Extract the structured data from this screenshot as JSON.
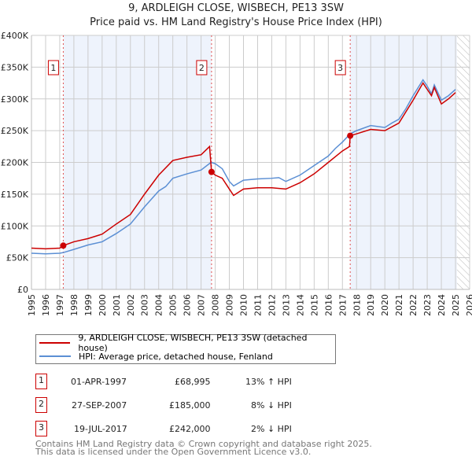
{
  "title": "9, ARDLEIGH CLOSE, WISBECH, PE13 3SW",
  "subtitle": "Price paid vs. HM Land Registry's House Price Index (HPI)",
  "chart_data": {
    "type": "line",
    "xlim": [
      1995,
      2026
    ],
    "ylim": [
      0,
      400000
    ],
    "yticks": [
      {
        "v": 0,
        "label": "£0"
      },
      {
        "v": 50000,
        "label": "£50K"
      },
      {
        "v": 100000,
        "label": "£100K"
      },
      {
        "v": 150000,
        "label": "£150K"
      },
      {
        "v": 200000,
        "label": "£200K"
      },
      {
        "v": 250000,
        "label": "£250K"
      },
      {
        "v": 300000,
        "label": "£300K"
      },
      {
        "v": 350000,
        "label": "£350K"
      },
      {
        "v": 400000,
        "label": "£400K"
      }
    ],
    "xticks": [
      "1995",
      "1996",
      "1997",
      "1998",
      "1999",
      "2000",
      "2001",
      "2002",
      "2003",
      "2004",
      "2005",
      "2006",
      "2007",
      "2008",
      "2009",
      "2010",
      "2011",
      "2012",
      "2013",
      "2014",
      "2015",
      "2016",
      "2017",
      "2018",
      "2019",
      "2020",
      "2021",
      "2022",
      "2023",
      "2024",
      "2025",
      "2026"
    ],
    "shaded_ranges": [
      [
        1997.25,
        2007.74
      ],
      [
        2017.55,
        2025.1
      ]
    ],
    "forecast_hatch_from": 2025.1,
    "series": [
      {
        "name": "9, ARDLEIGH CLOSE, WISBECH, PE13 3SW (detached house)",
        "color": "#cc0000",
        "x": [
          1995,
          1996,
          1997,
          1997.25,
          1998,
          1999,
          2000,
          2001,
          2002,
          2003,
          2004,
          2005,
          2006,
          2007,
          2007.6,
          2007.74,
          2008,
          2008.5,
          2009,
          2009.3,
          2010,
          2011,
          2012,
          2013,
          2014,
          2015,
          2016,
          2017,
          2017.5,
          2017.55,
          2018,
          2019,
          2020,
          2021,
          2022,
          2022.7,
          2023,
          2023.3,
          2023.5,
          2024,
          2024.5,
          2025
        ],
        "y": [
          65000,
          64000,
          65000,
          68995,
          75000,
          80000,
          87000,
          103000,
          118000,
          150000,
          180000,
          203000,
          208000,
          212000,
          225000,
          185000,
          180000,
          175000,
          158000,
          148000,
          158000,
          160000,
          160000,
          158000,
          168000,
          182000,
          200000,
          218000,
          225000,
          242000,
          245000,
          252000,
          250000,
          262000,
          298000,
          325000,
          315000,
          305000,
          318000,
          292000,
          300000,
          310000
        ]
      },
      {
        "name": "HPI: Average price, detached house, Fenland",
        "color": "#5b8fd4",
        "x": [
          1995,
          1996,
          1997,
          1997.25,
          1998,
          1999,
          2000,
          2001,
          2002,
          2003,
          2004,
          2004.5,
          2005,
          2006,
          2007,
          2007.7,
          2008,
          2008.5,
          2009,
          2009.3,
          2010,
          2011,
          2012,
          2012.5,
          2013,
          2014,
          2015,
          2016,
          2016.5,
          2017,
          2017.55,
          2018,
          2019,
          2020,
          2020.5,
          2021,
          2021.5,
          2022,
          2022.7,
          2023,
          2023.3,
          2023.5,
          2024,
          2024.5,
          2025
        ],
        "y": [
          57000,
          56000,
          57000,
          58000,
          63000,
          70000,
          75000,
          88000,
          103000,
          130000,
          155000,
          162000,
          175000,
          182000,
          188000,
          200000,
          198000,
          190000,
          170000,
          163000,
          172000,
          174000,
          175000,
          176000,
          170000,
          180000,
          195000,
          210000,
          222000,
          232000,
          245000,
          250000,
          258000,
          255000,
          262000,
          268000,
          285000,
          305000,
          330000,
          320000,
          308000,
          322000,
          298000,
          305000,
          315000
        ]
      }
    ],
    "sales": [
      {
        "n": "1",
        "x": 1997.25,
        "price": 68995,
        "date": "01-APR-1997",
        "price_label": "£68,995",
        "hpi": "13% ↑ HPI"
      },
      {
        "n": "2",
        "x": 2007.74,
        "price": 185000,
        "date": "27-SEP-2007",
        "price_label": "£185,000",
        "hpi": "8% ↓ HPI"
      },
      {
        "n": "3",
        "x": 2017.55,
        "price": 242000,
        "date": "19-JUL-2017",
        "price_label": "£242,000",
        "hpi": "2% ↓ HPI"
      }
    ]
  },
  "footer": {
    "line1": "Contains HM Land Registry data © Crown copyright and database right 2025.",
    "line2": "This data is licensed under the Open Government Licence v3.0."
  }
}
